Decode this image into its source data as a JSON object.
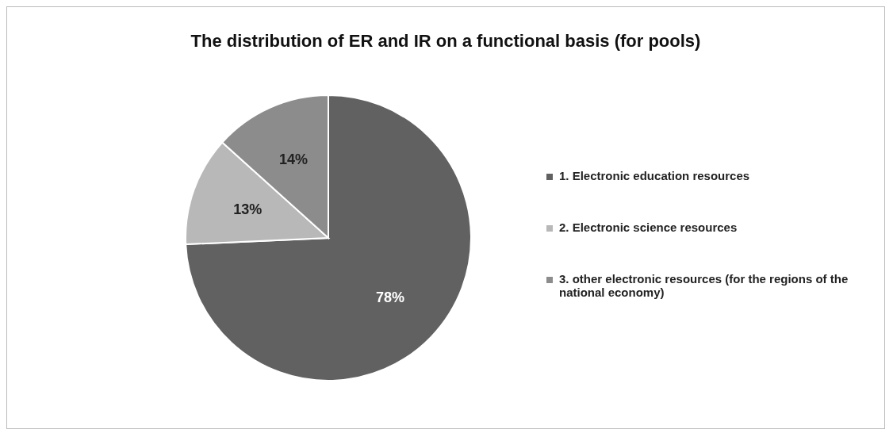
{
  "chart_data": {
    "type": "pie",
    "title": "The distribution of ER and IR on a functional basis (for pools)",
    "categories": [
      "1. Electronic education resources",
      "2. Electronic science resources",
      "3. other electronic resources (for the regions of the national economy)"
    ],
    "values": [
      78,
      13,
      14
    ],
    "colors": [
      "#616161",
      "#b8b8b8",
      "#8c8c8c"
    ],
    "value_labels": [
      "78%",
      "13%",
      "14%"
    ],
    "legend": "right"
  }
}
